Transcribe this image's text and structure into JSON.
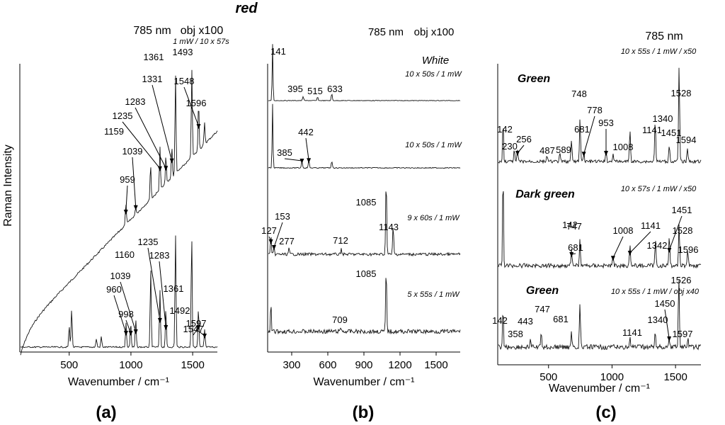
{
  "figure": {
    "panel_labels": [
      "(a)",
      "(b)",
      "(c)"
    ]
  },
  "chart_data": [
    {
      "type": "line",
      "panel": "(a)",
      "title": "red",
      "header": [
        "785 nm",
        "obj x100"
      ],
      "xlabel": "Wavenumber  / cm⁻¹",
      "ylabel": "Raman Intensity",
      "xlim": [
        100,
        1700
      ],
      "xticks": [
        500,
        1000,
        1500
      ],
      "notes": [
        "1 mW / 10 x 57s"
      ],
      "series": [
        {
          "peaks": [
            {
              "x": 959,
              "label": "959"
            },
            {
              "x": 1039,
              "label": "1039"
            },
            {
              "x": 1159,
              "label": "1159"
            },
            {
              "x": 1235,
              "label": "1235"
            },
            {
              "x": 1283,
              "label": "1283"
            },
            {
              "x": 1331,
              "label": "1331"
            },
            {
              "x": 1361,
              "label": "1361"
            },
            {
              "x": 1493,
              "label": "1493"
            },
            {
              "x": 1548,
              "label": "1548"
            },
            {
              "x": 1596,
              "label": "1596"
            }
          ]
        },
        {
          "peaks": [
            {
              "x": 960,
              "label": "960"
            },
            {
              "x": 998,
              "label": "998"
            },
            {
              "x": 1039,
              "label": "1039"
            },
            {
              "x": 1160,
              "label": "1160"
            },
            {
              "x": 1235,
              "label": "1235"
            },
            {
              "x": 1283,
              "label": "1283"
            },
            {
              "x": 1361,
              "label": "1361"
            },
            {
              "x": 1492,
              "label": "1492"
            },
            {
              "x": 1547,
              "label": "1547"
            },
            {
              "x": 1597,
              "label": "1597"
            }
          ]
        }
      ]
    },
    {
      "type": "line",
      "panel": "(b)",
      "header": [
        "785 nm",
        "obj x100"
      ],
      "xlabel": "Wavenumber  / cm⁻¹",
      "xlim": [
        100,
        1700
      ],
      "xticks": [
        300,
        600,
        900,
        1200,
        1500
      ],
      "series": [
        {
          "name": "White",
          "note": "10 x 50s / 1 mW",
          "peaks": [
            {
              "x": 141,
              "label": "141"
            },
            {
              "x": 395,
              "label": "395"
            },
            {
              "x": 515,
              "label": "515"
            },
            {
              "x": 633,
              "label": "633"
            }
          ]
        },
        {
          "note": "10 x 50s / 1 mW",
          "peaks": [
            {
              "x": 385,
              "label": "385"
            },
            {
              "x": 442,
              "label": "442"
            }
          ]
        },
        {
          "note": "9 x 60s / 1 mW",
          "peaks": [
            {
              "x": 127,
              "label": "127"
            },
            {
              "x": 153,
              "label": "153"
            },
            {
              "x": 277,
              "label": "277"
            },
            {
              "x": 712,
              "label": "712"
            },
            {
              "x": 1085,
              "label": "1085"
            },
            {
              "x": 1143,
              "label": "1143"
            }
          ]
        },
        {
          "note": "5 x 55s / 1 mW",
          "peaks": [
            {
              "x": 709,
              "label": "709"
            },
            {
              "x": 1085,
              "label": "1085"
            }
          ]
        }
      ]
    },
    {
      "type": "line",
      "panel": "(c)",
      "header": [
        "785 nm"
      ],
      "xlabel": "Wavenumber  / cm⁻¹",
      "xlim": [
        100,
        1700
      ],
      "xticks": [
        500,
        1000,
        1500
      ],
      "series": [
        {
          "name": "Green",
          "note": "10 x 55s / 1 mW / x50",
          "peaks": [
            {
              "x": 142,
              "label": "142"
            },
            {
              "x": 230,
              "label": "230"
            },
            {
              "x": 256,
              "label": "256"
            },
            {
              "x": 487,
              "label": "487"
            },
            {
              "x": 589,
              "label": "589"
            },
            {
              "x": 681,
              "label": "681"
            },
            {
              "x": 748,
              "label": "748"
            },
            {
              "x": 778,
              "label": "778"
            },
            {
              "x": 953,
              "label": "953"
            },
            {
              "x": 1008,
              "label": "1008"
            },
            {
              "x": 1141,
              "label": "1141"
            },
            {
              "x": 1340,
              "label": "1340"
            },
            {
              "x": 1451,
              "label": "1451"
            },
            {
              "x": 1528,
              "label": "1528"
            },
            {
              "x": 1594,
              "label": "1594"
            }
          ]
        },
        {
          "name": "Dark green",
          "note": "10 x 57s / 1 mW / x50",
          "peaks": [
            {
              "x": 142,
              "label": "142"
            },
            {
              "x": 681,
              "label": "681"
            },
            {
              "x": 747,
              "label": "747"
            },
            {
              "x": 1008,
              "label": "1008"
            },
            {
              "x": 1141,
              "label": "1141"
            },
            {
              "x": 1342,
              "label": "1342"
            },
            {
              "x": 1451,
              "label": "1451"
            },
            {
              "x": 1528,
              "label": "1528"
            },
            {
              "x": 1596,
              "label": "1596"
            }
          ]
        },
        {
          "name": "Green",
          "note": "10 x 55s / 1 mW /    obj x40",
          "peaks": [
            {
              "x": 142,
              "label": "142"
            },
            {
              "x": 358,
              "label": "358"
            },
            {
              "x": 443,
              "label": "443"
            },
            {
              "x": 681,
              "label": "681"
            },
            {
              "x": 747,
              "label": "747"
            },
            {
              "x": 1141,
              "label": "1141"
            },
            {
              "x": 1340,
              "label": "1340"
            },
            {
              "x": 1450,
              "label": "1450"
            },
            {
              "x": 1526,
              "label": "1526"
            },
            {
              "x": 1597,
              "label": "1597"
            }
          ]
        }
      ]
    }
  ]
}
